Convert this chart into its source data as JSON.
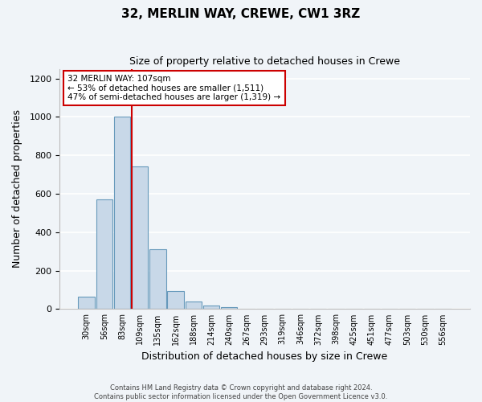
{
  "title": "32, MERLIN WAY, CREWE, CW1 3RZ",
  "subtitle": "Size of property relative to detached houses in Crewe",
  "xlabel": "Distribution of detached houses by size in Crewe",
  "ylabel": "Number of detached properties",
  "bin_labels": [
    "30sqm",
    "56sqm",
    "83sqm",
    "109sqm",
    "135sqm",
    "162sqm",
    "188sqm",
    "214sqm",
    "240sqm",
    "267sqm",
    "293sqm",
    "319sqm",
    "346sqm",
    "372sqm",
    "398sqm",
    "425sqm",
    "451sqm",
    "477sqm",
    "503sqm",
    "530sqm",
    "556sqm"
  ],
  "bar_values": [
    65,
    570,
    1000,
    740,
    310,
    95,
    38,
    20,
    10,
    1,
    1,
    0,
    0,
    0,
    0,
    0,
    0,
    0,
    0,
    0,
    0
  ],
  "bar_color": "#c8d8e8",
  "bar_edge_color": "#6699bb",
  "property_line_x": 3,
  "annotation_title": "32 MERLIN WAY: 107sqm",
  "annotation_line1": "← 53% of detached houses are smaller (1,511)",
  "annotation_line2": "47% of semi-detached houses are larger (1,319) →",
  "annotation_box_color": "#ffffff",
  "annotation_box_edge": "#cc0000",
  "vline_color": "#cc0000",
  "ylim": [
    0,
    1250
  ],
  "yticks": [
    0,
    200,
    400,
    600,
    800,
    1000,
    1200
  ],
  "footer1": "Contains HM Land Registry data © Crown copyright and database right 2024.",
  "footer2": "Contains public sector information licensed under the Open Government Licence v3.0.",
  "bg_color": "#f0f4f8",
  "grid_color": "#ffffff"
}
